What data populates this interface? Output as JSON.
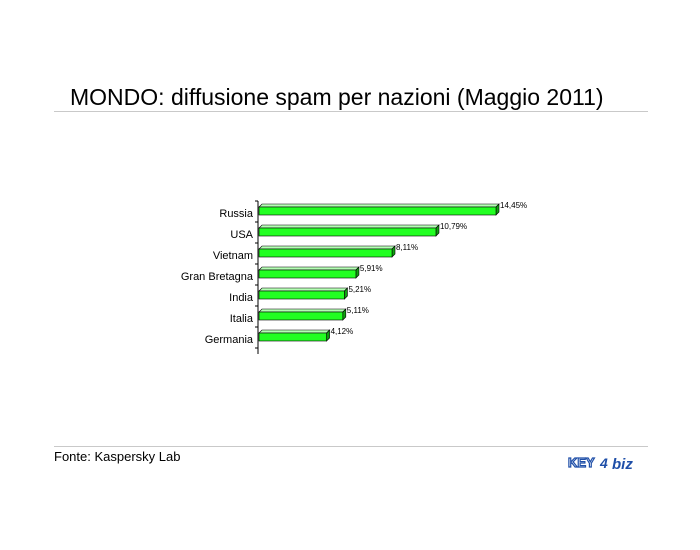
{
  "title": "MONDO: diffusione spam per nazioni (Maggio 2011)",
  "source": "Fonte: Kaspersky Lab",
  "logo": {
    "part1": "KEY",
    "part2": "4",
    "part3": "biz"
  },
  "colors": {
    "bar": "#22ff22",
    "bar_top": "#b4ffb4",
    "bar_side": "#10a010",
    "axis": "#000000"
  },
  "chart_data": {
    "type": "bar",
    "orientation": "horizontal",
    "title": "MONDO: diffusione spam per nazioni (Maggio 2011)",
    "categories": [
      "Russia",
      "USA",
      "Vietnam",
      "Gran Bretagna",
      "India",
      "Italia",
      "Germania"
    ],
    "values": [
      14.45,
      10.79,
      8.11,
      5.91,
      5.21,
      5.11,
      4.12
    ],
    "value_labels": [
      "14,45%",
      "10,79%",
      "8,11%",
      "5,91%",
      "5,21%",
      "5,11%",
      "4,12%"
    ],
    "unit": "%",
    "xlabel": "",
    "ylabel": "",
    "grid": false,
    "legend": "none"
  }
}
